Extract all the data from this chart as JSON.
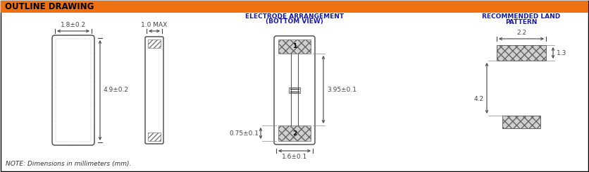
{
  "title": "OUTLINE DRAWING",
  "title_bg": "#F07010",
  "title_color": "#000000",
  "bg_color": "#FFFFFF",
  "border_color": "#000000",
  "note": "NOTE: Dimensions in millimeters (mm).",
  "section2_title_line1": "ELECTRODE ARRANGEMENT",
  "section2_title_line2": "(BOTTOM VIEW)",
  "section3_title_line1": "RECOMMENDED LAND",
  "section3_title_line2": "PATTERN",
  "line_color": "#444444",
  "dim_color": "#444444",
  "hatch_color": "#999999"
}
